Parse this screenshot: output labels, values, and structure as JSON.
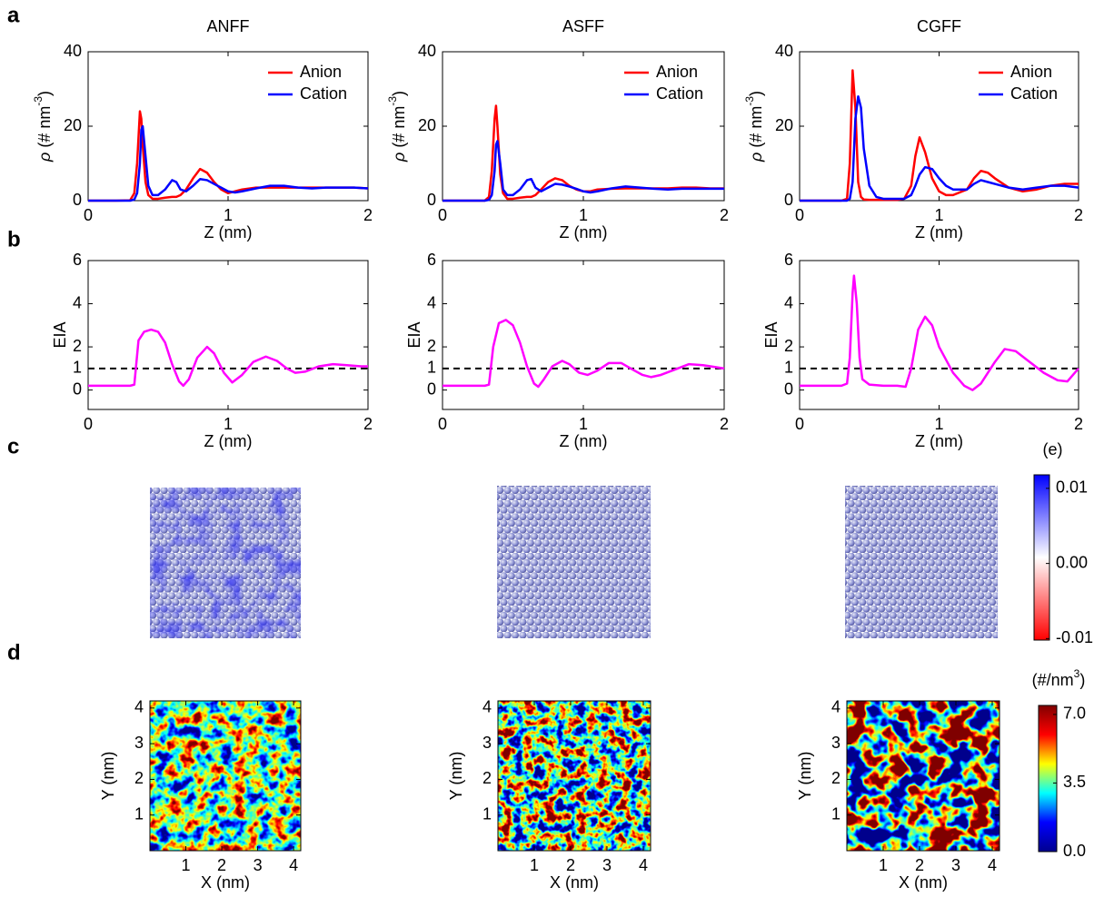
{
  "panel_labels": [
    "a",
    "b",
    "c",
    "d"
  ],
  "chart_data": [
    {
      "type": "line",
      "title": "ANFF",
      "xlabel": "Z (nm)",
      "ylabel": {
        "symbol": "ρ",
        "text": " (# nm",
        "sup": "-3",
        "close": ")"
      },
      "xlim": [
        0,
        2
      ],
      "ylim": [
        0,
        40
      ],
      "xticks": [
        0,
        1,
        2
      ],
      "yticks": [
        0,
        20,
        40
      ],
      "legend": "upper right",
      "x": [
        0,
        0.1,
        0.2,
        0.3,
        0.33,
        0.35,
        0.37,
        0.38,
        0.39,
        0.41,
        0.43,
        0.46,
        0.5,
        0.55,
        0.6,
        0.63,
        0.66,
        0.7,
        0.75,
        0.8,
        0.85,
        0.9,
        0.95,
        1.0,
        1.05,
        1.1,
        1.2,
        1.3,
        1.4,
        1.5,
        1.6,
        1.7,
        1.8,
        1.9,
        2.0
      ],
      "series": [
        {
          "name": "Anion",
          "color": "#ff0000",
          "values": [
            0,
            0,
            0,
            0.1,
            2,
            10,
            24,
            22,
            15,
            5,
            1.5,
            0.5,
            0.5,
            0.8,
            1,
            1,
            1.5,
            3,
            6,
            8.5,
            7.5,
            5,
            3,
            2,
            2.5,
            3,
            3.5,
            3.5,
            3.5,
            3.5,
            3.5,
            3.5,
            3.5,
            3.5,
            3.3
          ]
        },
        {
          "name": "Cation",
          "color": "#0000ff",
          "values": [
            0,
            0,
            0,
            0,
            0.3,
            2,
            10,
            19,
            20,
            12,
            4,
            1.5,
            1.5,
            3,
            5.5,
            5,
            3,
            2.5,
            4,
            5.8,
            5.5,
            4.5,
            3.5,
            2.5,
            2.2,
            2.5,
            3.3,
            4,
            4,
            3.5,
            3.3,
            3.5,
            3.5,
            3.5,
            3.3
          ]
        }
      ]
    },
    {
      "type": "line",
      "title": "ASFF",
      "xlabel": "Z (nm)",
      "ylabel": {
        "symbol": "ρ",
        "text": " (# nm",
        "sup": "-3",
        "close": ")"
      },
      "xlim": [
        0,
        2
      ],
      "ylim": [
        0,
        40
      ],
      "xticks": [
        0,
        1,
        2
      ],
      "yticks": [
        0,
        20,
        40
      ],
      "legend": "upper right",
      "x": [
        0,
        0.1,
        0.2,
        0.3,
        0.33,
        0.35,
        0.37,
        0.38,
        0.39,
        0.41,
        0.43,
        0.46,
        0.5,
        0.55,
        0.6,
        0.63,
        0.66,
        0.7,
        0.75,
        0.8,
        0.85,
        0.9,
        0.95,
        1.0,
        1.05,
        1.1,
        1.2,
        1.3,
        1.4,
        1.5,
        1.6,
        1.7,
        1.8,
        1.9,
        2.0
      ],
      "series": [
        {
          "name": "Anion",
          "color": "#ff0000",
          "values": [
            0,
            0,
            0,
            0,
            1,
            8,
            22,
            25.5,
            20,
            7,
            2,
            0.5,
            0.5,
            0.8,
            1,
            1,
            1.5,
            3,
            5,
            6,
            5.5,
            4,
            3,
            2.5,
            2.5,
            3,
            3.2,
            3.3,
            3.3,
            3.3,
            3.3,
            3.5,
            3.5,
            3.3,
            3.3
          ]
        },
        {
          "name": "Cation",
          "color": "#0000ff",
          "values": [
            0,
            0,
            0,
            0,
            0.2,
            1.5,
            8,
            15,
            16,
            10,
            3,
            1.5,
            1.5,
            3,
            5.5,
            5.8,
            3.5,
            2.5,
            3.5,
            4.5,
            4.3,
            3.8,
            3.2,
            2.5,
            2.2,
            2.5,
            3.3,
            3.8,
            3.5,
            3.2,
            3,
            3.2,
            3.2,
            3.2,
            3.2
          ]
        }
      ]
    },
    {
      "type": "line",
      "title": "CGFF",
      "xlabel": "Z (nm)",
      "ylabel": {
        "symbol": "ρ",
        "text": " (# nm",
        "sup": "-3",
        "close": ")"
      },
      "xlim": [
        0,
        2
      ],
      "ylim": [
        0,
        40
      ],
      "xticks": [
        0,
        1,
        2
      ],
      "yticks": [
        0,
        20,
        40
      ],
      "legend": "upper right",
      "x": [
        0,
        0.1,
        0.2,
        0.3,
        0.34,
        0.36,
        0.38,
        0.4,
        0.42,
        0.44,
        0.46,
        0.5,
        0.55,
        0.6,
        0.7,
        0.75,
        0.8,
        0.83,
        0.86,
        0.9,
        0.95,
        1.0,
        1.05,
        1.1,
        1.2,
        1.25,
        1.3,
        1.35,
        1.4,
        1.5,
        1.6,
        1.7,
        1.8,
        1.9,
        2.0
      ],
      "series": [
        {
          "name": "Anion",
          "color": "#ff0000",
          "values": [
            0,
            0,
            0,
            0,
            0.5,
            10,
            35,
            25,
            5,
            1,
            0.3,
            0.2,
            0.2,
            0.2,
            0.2,
            0.5,
            4,
            12,
            17,
            13,
            6,
            2.5,
            1.5,
            1.5,
            3,
            6,
            8,
            7.5,
            6,
            3.5,
            2.5,
            3,
            4,
            4.5,
            4.5
          ]
        },
        {
          "name": "Cation",
          "color": "#0000ff",
          "values": [
            0,
            0,
            0,
            0,
            0,
            0.5,
            5,
            22,
            28,
            25,
            14,
            4,
            1,
            0.5,
            0.5,
            0.5,
            1.5,
            4,
            7,
            9,
            8.5,
            6,
            4,
            3,
            3,
            4.5,
            5.5,
            5,
            4.5,
            3.5,
            3,
            3.5,
            4,
            4,
            3.5
          ]
        }
      ]
    },
    {
      "type": "line",
      "xlabel": "Z (nm)",
      "ylabel": "EIA",
      "color": "#ff00ff",
      "hline": 1,
      "xlim": [
        0,
        2
      ],
      "ylim": [
        -0.9,
        6
      ],
      "xticks": [
        0,
        1,
        2
      ],
      "yticks": [
        0,
        1,
        2,
        4,
        6
      ],
      "x": [
        0,
        0.3,
        0.33,
        0.36,
        0.4,
        0.45,
        0.5,
        0.55,
        0.6,
        0.65,
        0.68,
        0.72,
        0.78,
        0.85,
        0.9,
        0.97,
        1.03,
        1.1,
        1.18,
        1.27,
        1.35,
        1.42,
        1.48,
        1.55,
        1.65,
        1.75,
        1.85,
        1.95,
        2.0
      ],
      "values": [
        0.2,
        0.2,
        0.25,
        2.3,
        2.7,
        2.8,
        2.7,
        2.2,
        1.2,
        0.4,
        0.2,
        0.5,
        1.5,
        2.0,
        1.7,
        0.8,
        0.35,
        0.7,
        1.3,
        1.55,
        1.35,
        1.0,
        0.8,
        0.85,
        1.1,
        1.2,
        1.15,
        1.1,
        1.1
      ]
    },
    {
      "type": "line",
      "xlabel": "Z (nm)",
      "ylabel": "EIA",
      "color": "#ff00ff",
      "hline": 1,
      "xlim": [
        0,
        2
      ],
      "ylim": [
        -0.9,
        6
      ],
      "xticks": [
        0,
        1,
        2
      ],
      "yticks": [
        0,
        1,
        2,
        4,
        6
      ],
      "x": [
        0,
        0.3,
        0.33,
        0.36,
        0.4,
        0.45,
        0.5,
        0.55,
        0.6,
        0.65,
        0.68,
        0.72,
        0.78,
        0.85,
        0.9,
        0.97,
        1.03,
        1.1,
        1.18,
        1.27,
        1.35,
        1.42,
        1.48,
        1.55,
        1.65,
        1.75,
        1.85,
        1.95,
        2.0
      ],
      "values": [
        0.2,
        0.2,
        0.25,
        2.0,
        3.1,
        3.25,
        3.0,
        2.2,
        1.1,
        0.3,
        0.15,
        0.5,
        1.1,
        1.35,
        1.2,
        0.8,
        0.7,
        0.9,
        1.25,
        1.25,
        0.95,
        0.7,
        0.6,
        0.7,
        0.95,
        1.2,
        1.15,
        1.05,
        1.0
      ]
    },
    {
      "type": "line",
      "xlabel": "Z (nm)",
      "ylabel": "EIA",
      "color": "#ff00ff",
      "hline": 1,
      "xlim": [
        0,
        2
      ],
      "ylim": [
        -0.9,
        6
      ],
      "xticks": [
        0,
        1,
        2
      ],
      "yticks": [
        0,
        1,
        2,
        4,
        6
      ],
      "x": [
        0,
        0.3,
        0.34,
        0.36,
        0.38,
        0.39,
        0.41,
        0.43,
        0.45,
        0.5,
        0.6,
        0.7,
        0.76,
        0.8,
        0.85,
        0.9,
        0.95,
        1.0,
        1.1,
        1.18,
        1.24,
        1.3,
        1.4,
        1.47,
        1.55,
        1.65,
        1.75,
        1.85,
        1.92,
        2.0
      ],
      "values": [
        0.2,
        0.2,
        0.3,
        1.5,
        4.5,
        5.3,
        4.0,
        1.5,
        0.5,
        0.25,
        0.2,
        0.2,
        0.15,
        1.0,
        2.8,
        3.4,
        3.0,
        2.0,
        0.8,
        0.2,
        0.0,
        0.3,
        1.3,
        1.9,
        1.8,
        1.3,
        0.8,
        0.45,
        0.4,
        1.0
      ]
    },
    {
      "type": "colorbar",
      "label": {
        "text": "(e)"
      },
      "clim": [
        -0.0102,
        0.0118
      ],
      "colors": [
        "#0000ff",
        "#ffffff",
        "#ff0000"
      ],
      "ticks": [
        0.01,
        {
          "value": 0,
          "label": "0.00"
        },
        -0.01
      ]
    },
    {
      "type": "heatmap",
      "xlabel": "X (nm)",
      "ylabel": "Y (nm)",
      "xlim": [
        0,
        4.2
      ],
      "ylim": [
        0,
        4.2
      ],
      "xticks": [
        1,
        2,
        3,
        4
      ],
      "yticks": [
        1,
        2,
        3,
        4
      ]
    },
    {
      "type": "heatmap",
      "xlabel": "X (nm)",
      "ylabel": "Y (nm)",
      "xlim": [
        0,
        4.2
      ],
      "ylim": [
        0,
        4.2
      ],
      "xticks": [
        1,
        2,
        3,
        4
      ],
      "yticks": [
        1,
        2,
        3,
        4
      ]
    },
    {
      "type": "heatmap",
      "xlabel": "X (nm)",
      "ylabel": "Y (nm)",
      "xlim": [
        0,
        4.2
      ],
      "ylim": [
        0,
        4.2
      ],
      "xticks": [
        1,
        2,
        3,
        4
      ],
      "yticks": [
        1,
        2,
        3,
        4
      ]
    },
    {
      "type": "colorbar",
      "label": {
        "text": "(#/nm",
        "sup": "3",
        "close": ")"
      },
      "clim": [
        0,
        7.46
      ],
      "colors": [
        "#800000",
        "#ff0000",
        "#ffff00",
        "#00ffff",
        "#0000ff",
        "#00008f"
      ],
      "ticks": [
        {
          "value": 7,
          "label": "7.0"
        },
        3.5,
        {
          "value": 0,
          "label": "0.0"
        }
      ]
    }
  ]
}
